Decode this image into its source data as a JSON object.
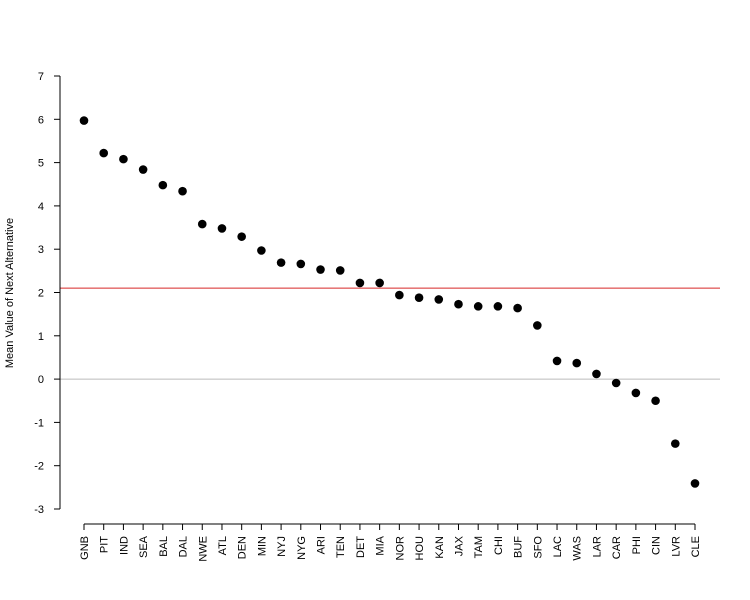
{
  "chart_data": {
    "type": "scatter",
    "title": "",
    "xlabel": "",
    "ylabel": "Mean Value of Next Alternative",
    "ylim": [
      -3,
      7
    ],
    "yticks": [
      -3,
      -2,
      -1,
      0,
      1,
      2,
      3,
      4,
      5,
      6,
      7
    ],
    "grid": false,
    "legend": "none",
    "categories": [
      "GNB",
      "PIT",
      "IND",
      "SEA",
      "BAL",
      "DAL",
      "NWE",
      "ATL",
      "DEN",
      "MIN",
      "NYJ",
      "NYG",
      "ARI",
      "TEN",
      "DET",
      "MIA",
      "NOR",
      "HOU",
      "KAN",
      "JAX",
      "TAM",
      "CHI",
      "BUF",
      "SFO",
      "LAC",
      "WAS",
      "LAR",
      "CAR",
      "PHI",
      "CIN",
      "LVR",
      "CLE"
    ],
    "values": [
      5.97,
      5.22,
      5.08,
      4.84,
      4.48,
      4.34,
      3.58,
      3.48,
      3.29,
      2.97,
      2.69,
      2.66,
      2.53,
      2.51,
      2.22,
      2.22,
      1.94,
      1.88,
      1.84,
      1.73,
      1.68,
      1.68,
      1.64,
      1.24,
      0.42,
      0.37,
      0.12,
      -0.09,
      -0.32,
      -0.5,
      -1.49,
      -2.41
    ],
    "reference_lines": [
      {
        "y": 2.1,
        "color": "#d62728"
      },
      {
        "y": 0,
        "color": "#bbbbbb"
      }
    ],
    "point_color": "#000000"
  }
}
